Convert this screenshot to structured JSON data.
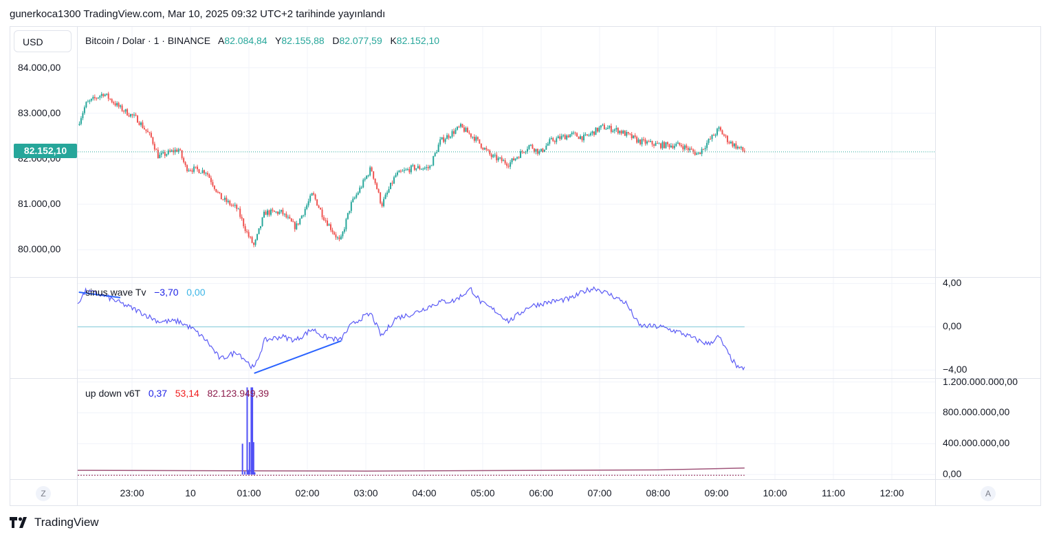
{
  "header": {
    "published": "gunerkoca1300 TradingView.com, Mar 10, 2025 09:32 UTC+2 tarihinde yayınlandı"
  },
  "currency_button": "USD",
  "legend": {
    "symbol": "Bitcoin / Dolar · 1 · BINANCE",
    "open_label": "A",
    "open": "82.084,84",
    "high_label": "Y",
    "high": "82.155,88",
    "low_label": "D",
    "low": "82.077,59",
    "close_label": "K",
    "close": "82.152,10"
  },
  "last_price_tag": "82.152,10",
  "indicator1": {
    "name": "sinus wave Tv",
    "value1": "−3,70",
    "value2": "0,00"
  },
  "indicator2": {
    "name": "up down v6T",
    "value1": "0,37",
    "value2": "53,14",
    "value3": "82.123.949,39"
  },
  "bottom": {
    "left_button": "Z",
    "right_button": "A",
    "logo_text": "TradingView"
  },
  "colors": {
    "up": "#26a69a",
    "down": "#ef5350",
    "sinus": "#5b5bf5",
    "zero": "#7ec8d8",
    "trend": "#2962ff",
    "volume": "#4f4ff5",
    "avg": "#a0557a"
  },
  "chart_data": [
    {
      "type": "candlestick",
      "title": "Bitcoin / Dolar · 1 · BINANCE",
      "x_unit": "hours relative to 00:00 Mar 10",
      "ylim": [
        79400,
        84900
      ],
      "y_ticks": [
        "84.000,00",
        "83.000,00",
        "82.000,00",
        "81.000,00",
        "80.000,00"
      ],
      "y_tick_values": [
        84000,
        83000,
        82000,
        81000,
        80000
      ],
      "x_ticks": [
        "23:00",
        "10",
        "01:00",
        "02:00",
        "03:00",
        "04:00",
        "05:00",
        "06:00",
        "07:00",
        "08:00",
        "09:00",
        "10:00",
        "11:00",
        "12:00"
      ],
      "x_tick_values": [
        -1,
        0,
        1,
        2,
        3,
        4,
        5,
        6,
        7,
        8,
        9,
        10,
        11,
        12
      ],
      "close_path": [
        [
          -1.93,
          82740
        ],
        [
          -1.79,
          83200
        ],
        [
          -1.49,
          83440
        ],
        [
          -1.2,
          83110
        ],
        [
          -0.91,
          82870
        ],
        [
          -0.67,
          82460
        ],
        [
          -0.55,
          82050
        ],
        [
          -0.2,
          82210
        ],
        [
          -0.08,
          81800
        ],
        [
          0.27,
          81720
        ],
        [
          0.51,
          81150
        ],
        [
          0.8,
          80900
        ],
        [
          0.98,
          80330
        ],
        [
          1.09,
          80080
        ],
        [
          1.27,
          80820
        ],
        [
          1.56,
          80820
        ],
        [
          1.8,
          80490
        ],
        [
          2.09,
          81230
        ],
        [
          2.27,
          80740
        ],
        [
          2.56,
          80160
        ],
        [
          2.74,
          80980
        ],
        [
          2.92,
          81390
        ],
        [
          3.09,
          81800
        ],
        [
          3.27,
          80980
        ],
        [
          3.51,
          81640
        ],
        [
          3.8,
          81800
        ],
        [
          4.09,
          81800
        ],
        [
          4.27,
          82380
        ],
        [
          4.62,
          82700
        ],
        [
          4.86,
          82460
        ],
        [
          5.15,
          82050
        ],
        [
          5.45,
          81890
        ],
        [
          5.8,
          82300
        ],
        [
          5.98,
          82130
        ],
        [
          6.15,
          82380
        ],
        [
          6.51,
          82540
        ],
        [
          6.74,
          82460
        ],
        [
          7.04,
          82700
        ],
        [
          7.33,
          82620
        ],
        [
          7.68,
          82380
        ],
        [
          8.04,
          82300
        ],
        [
          8.39,
          82300
        ],
        [
          8.68,
          82100
        ],
        [
          8.86,
          82380
        ],
        [
          9.04,
          82650
        ],
        [
          9.21,
          82380
        ],
        [
          9.48,
          82152
        ]
      ],
      "last_price": 82152.1
    },
    {
      "type": "line",
      "title": "sinus wave Tv",
      "ylim": [
        -4.75,
        4.6
      ],
      "y_ticks": [
        "4,00",
        "0,00",
        "−4,00"
      ],
      "y_tick_values": [
        4,
        0,
        -4
      ],
      "zero_line": 0,
      "series": [
        [
          -1.93,
          2.2
        ],
        [
          -1.79,
          3.3
        ],
        [
          -1.49,
          2.9
        ],
        [
          -1.2,
          2.2
        ],
        [
          -0.91,
          1.5
        ],
        [
          -0.55,
          0.5
        ],
        [
          -0.2,
          0.5
        ],
        [
          0.04,
          -0.2
        ],
        [
          0.27,
          -1.25
        ],
        [
          0.51,
          -3.0
        ],
        [
          0.8,
          -2.3
        ],
        [
          1.09,
          -3.9
        ],
        [
          1.27,
          -1.25
        ],
        [
          1.56,
          -0.9
        ],
        [
          1.8,
          -1.25
        ],
        [
          2.09,
          -0.2
        ],
        [
          2.27,
          -0.9
        ],
        [
          2.56,
          -1.25
        ],
        [
          2.74,
          0.1
        ],
        [
          2.92,
          0.8
        ],
        [
          3.09,
          1.2
        ],
        [
          3.27,
          -0.9
        ],
        [
          3.51,
          0.8
        ],
        [
          3.8,
          1.2
        ],
        [
          4.09,
          1.9
        ],
        [
          4.27,
          2.3
        ],
        [
          4.51,
          2.4
        ],
        [
          4.8,
          3.5
        ],
        [
          4.98,
          2.2
        ],
        [
          5.21,
          1.5
        ],
        [
          5.45,
          0.5
        ],
        [
          5.8,
          1.9
        ],
        [
          6.15,
          2.3
        ],
        [
          6.51,
          2.6
        ],
        [
          6.74,
          3.3
        ],
        [
          6.92,
          3.6
        ],
        [
          7.21,
          2.9
        ],
        [
          7.45,
          2.2
        ],
        [
          7.68,
          0.1
        ],
        [
          8.04,
          0
        ],
        [
          8.39,
          -0.55
        ],
        [
          8.68,
          -1.25
        ],
        [
          8.86,
          -1.6
        ],
        [
          9.04,
          -0.9
        ],
        [
          9.21,
          -2.6
        ],
        [
          9.39,
          -4.0
        ],
        [
          9.48,
          -3.7
        ]
      ],
      "trend_lines": [
        [
          [
            1.09,
            -4.3
          ],
          [
            2.58,
            -1.3
          ]
        ],
        [
          [
            -1.91,
            3.2
          ],
          [
            -1.2,
            2.7
          ]
        ]
      ]
    },
    {
      "type": "bar",
      "title": "up down v6T",
      "ylim": [
        -60000000,
        1250000000
      ],
      "y_ticks": [
        "1.200.000.000,00",
        "800.000.000,00",
        "400.000.000,00",
        "0,00"
      ],
      "y_tick_values": [
        1200000000,
        800000000,
        400000000,
        0
      ],
      "bars": [
        [
          0.89,
          400000000
        ],
        [
          0.93,
          40000000
        ],
        [
          0.97,
          1130000000
        ],
        [
          0.99,
          60000000
        ],
        [
          1.01,
          420000000
        ],
        [
          1.04,
          1130000000
        ],
        [
          1.06,
          1130000000
        ],
        [
          1.08,
          420000000
        ],
        [
          1.1,
          30000000
        ]
      ],
      "avg_line": [
        [
          -1.93,
          55000000
        ],
        [
          3,
          45000000
        ],
        [
          8,
          60000000
        ],
        [
          9.48,
          85000000
        ]
      ]
    }
  ]
}
